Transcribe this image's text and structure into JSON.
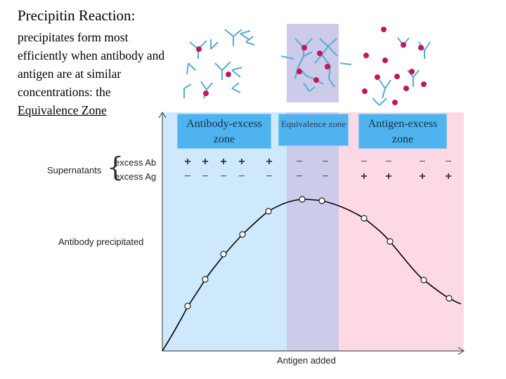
{
  "title": "Precipitin Reaction:",
  "description": {
    "text": "precipitates form most efficiently when antibody and antigen are at similar concentrations: the",
    "equivalence": "Equivalence Zone"
  },
  "zones": {
    "antibody_excess": "Antibody-excess zone",
    "equivalence": "Equivalence zone",
    "antigen_excess": "Antigen-excess zone"
  },
  "labels": {
    "supernatants": "Supernatants",
    "excess_ab": "excess Ab",
    "excess_ag": "excess Ag",
    "antibody_precipitated": "Antibody precipitated",
    "antigen_added": "Antigen added"
  },
  "signs": {
    "ab_row": [
      "+",
      "+",
      "+",
      "+",
      "+",
      "−",
      "−",
      "−",
      "−",
      "−",
      "−"
    ],
    "ag_row": [
      "−",
      "−",
      "−",
      "−",
      "−",
      "−",
      "−",
      "+",
      "+",
      "+",
      "+"
    ]
  },
  "colors": {
    "antibody_zone": "#cde9fb",
    "equivalence_zone": "#cccbea",
    "antigen_zone": "#fdd9e6",
    "zone_label_box": "#4fb3f0",
    "antibody_molecule": "#5aa9d8",
    "antigen_molecule": "#c2185b"
  },
  "icons": [
    "antibody-y-shape",
    "antigen-dot"
  ]
}
